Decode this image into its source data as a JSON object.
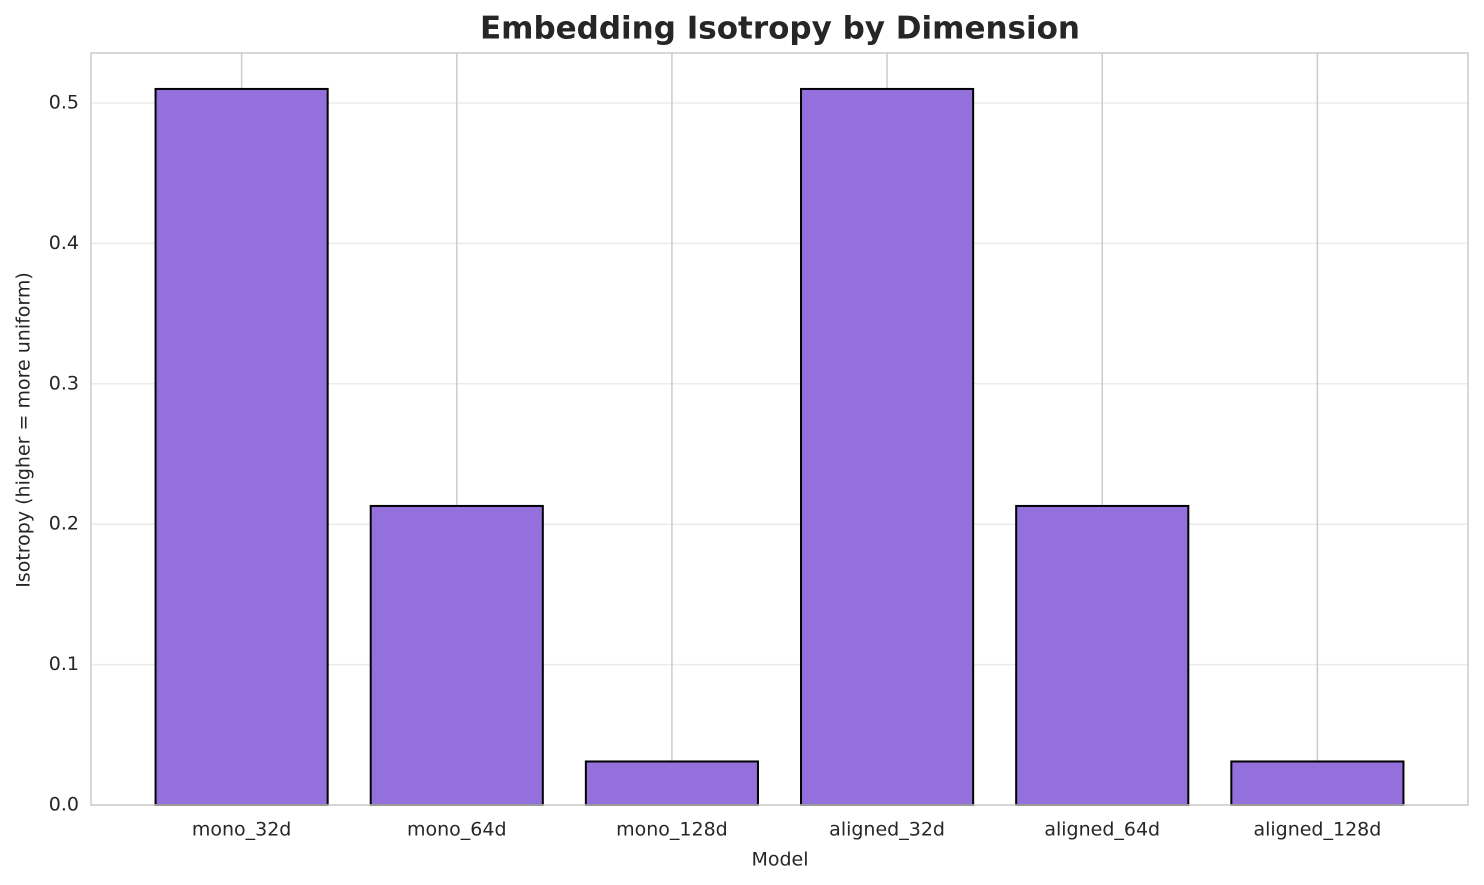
{
  "chart_data": {
    "type": "bar",
    "title": "Embedding Isotropy by Dimension",
    "x_label": "Model",
    "y_label": "Isotropy (higher = more uniform)",
    "categories": [
      "mono_32d",
      "mono_64d",
      "mono_128d",
      "aligned_32d",
      "aligned_64d",
      "aligned_128d"
    ],
    "values": [
      0.51,
      0.213,
      0.031,
      0.51,
      0.213,
      0.031
    ],
    "color": "#9370db",
    "edge_color": "#000000",
    "ylim": [
      0,
      0.5356
    ],
    "yticks": [
      {
        "value": 0,
        "label": "0.0"
      },
      0.1,
      0.2,
      0.3,
      0.4,
      0.5
    ],
    "grid": true
  }
}
